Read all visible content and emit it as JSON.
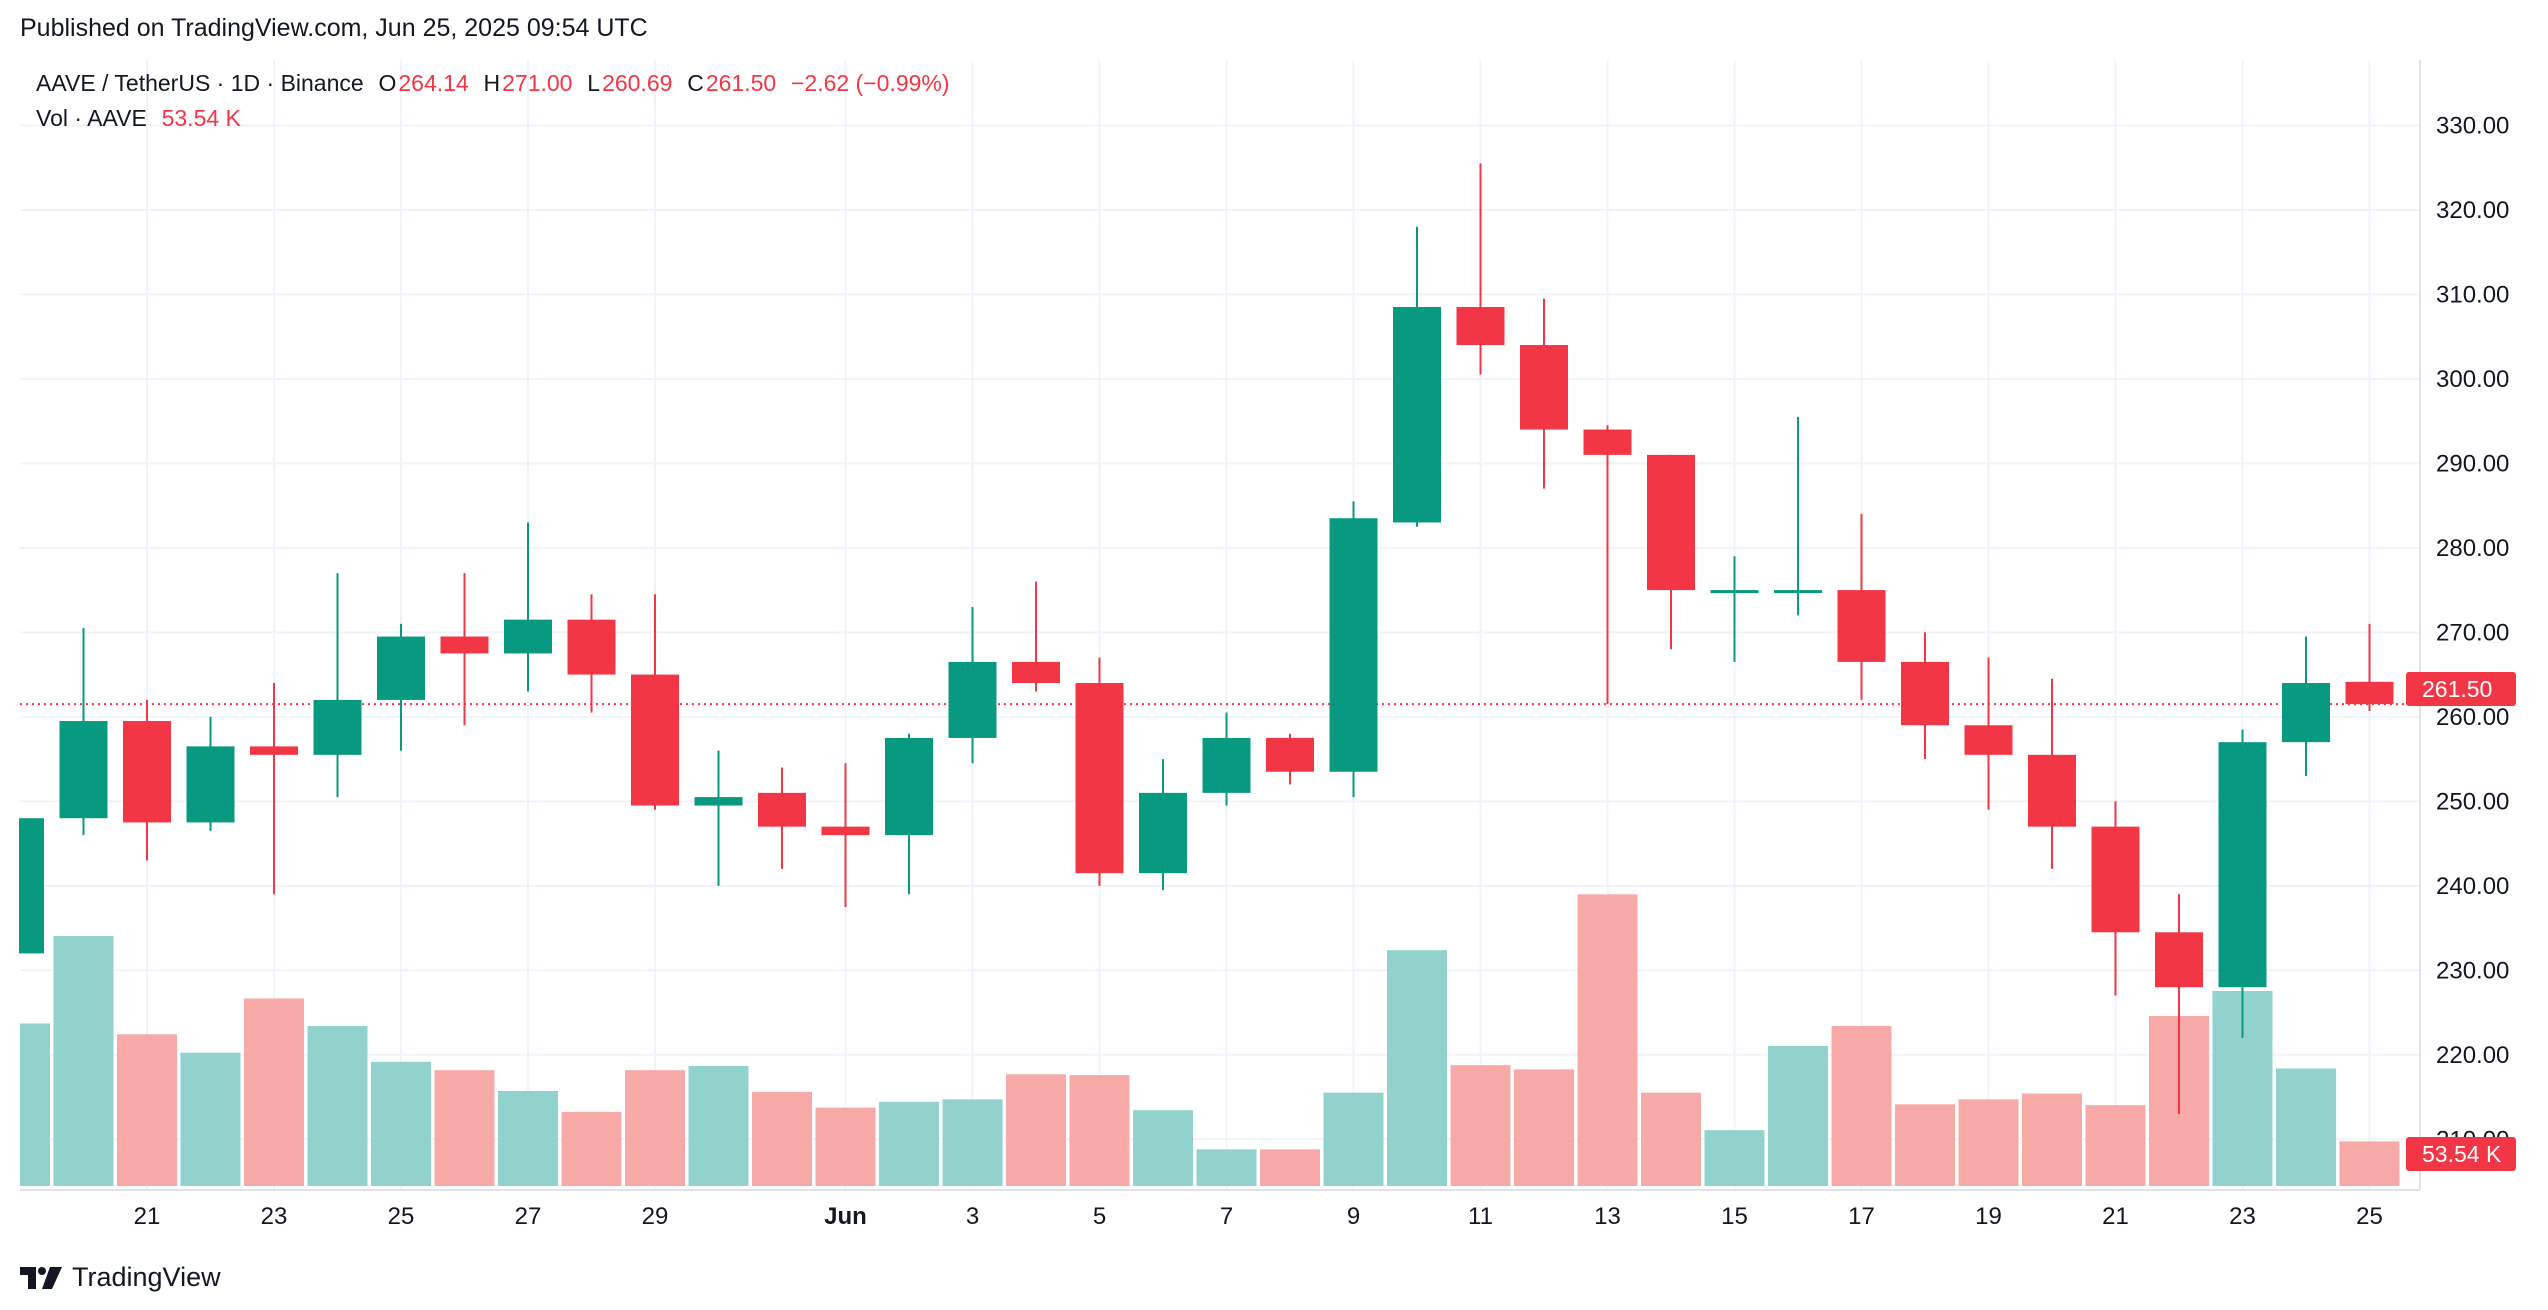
{
  "header": {
    "published": "Published on TradingView.com, Jun 25, 2025 09:54 UTC"
  },
  "legend": {
    "symbol": "AAVE / TetherUS · 1D · Binance",
    "o_label": "O",
    "o_value": "264.14",
    "h_label": "H",
    "h_value": "271.00",
    "l_label": "L",
    "l_value": "260.69",
    "c_label": "C",
    "c_value": "261.50",
    "change": "−2.62 (−0.99%)",
    "vol_label": "Vol · AAVE",
    "vol_value": "53.54 K"
  },
  "price_tag": "261.50",
  "volume_tag": "53.54 K",
  "footer": {
    "brand": "TradingView",
    "logo_icon": "tradingview-logo-icon"
  },
  "colors": {
    "up": "#089981",
    "down": "#f23645",
    "up_volume": "#92d2cc",
    "down_volume": "#f7a9a7",
    "grid": "#f0f3fa",
    "text": "#131722"
  },
  "chart_data": {
    "type": "candlestick",
    "y_axis": {
      "ticks": [
        "210.00",
        "220.00",
        "230.00",
        "240.00",
        "250.00",
        "260.00",
        "270.00",
        "280.00",
        "290.00",
        "300.00",
        "310.00",
        "320.00",
        "330.00"
      ],
      "ylim": [
        204,
        333
      ],
      "position": "right"
    },
    "x_axis": {
      "ticks": [
        "21",
        "23",
        "25",
        "27",
        "29",
        "Jun",
        "3",
        "5",
        "7",
        "9",
        "11",
        "13",
        "15",
        "17",
        "19",
        "21",
        "23",
        "25"
      ]
    },
    "grid": true,
    "last_price_line": 261.5,
    "candles": [
      {
        "date": "May 19",
        "open": 232,
        "high": 248,
        "low": 232,
        "close": 248,
        "volume": 19.5
      },
      {
        "date": "May 20",
        "open": 248,
        "high": 270.5,
        "low": 246,
        "close": 259.5,
        "volume": 30.0
      },
      {
        "date": "May 21",
        "open": 259.5,
        "high": 262,
        "low": 243,
        "close": 247.5,
        "volume": 18.2
      },
      {
        "date": "May 22",
        "open": 247.5,
        "high": 260,
        "low": 246.5,
        "close": 256.5,
        "volume": 16.0
      },
      {
        "date": "May 23",
        "open": 256.5,
        "high": 264,
        "low": 239,
        "close": 255.5,
        "volume": 22.5
      },
      {
        "date": "May 24",
        "open": 255.5,
        "high": 277,
        "low": 250.5,
        "close": 262,
        "volume": 19.2
      },
      {
        "date": "May 25",
        "open": 262,
        "high": 271,
        "low": 256,
        "close": 269.5,
        "volume": 14.9
      },
      {
        "date": "May 26",
        "open": 269.5,
        "high": 277,
        "low": 259,
        "close": 267.5,
        "volume": 13.9
      },
      {
        "date": "May 27",
        "open": 267.5,
        "high": 283,
        "low": 263,
        "close": 271.5,
        "volume": 11.4
      },
      {
        "date": "May 28",
        "open": 271.5,
        "high": 274.5,
        "low": 260.5,
        "close": 265,
        "volume": 8.9
      },
      {
        "date": "May 29",
        "open": 265,
        "high": 274.5,
        "low": 249,
        "close": 249.5,
        "volume": 13.9
      },
      {
        "date": "May 30",
        "open": 249.5,
        "high": 256,
        "low": 240,
        "close": 250.5,
        "volume": 14.4
      },
      {
        "date": "May 31",
        "open": 251,
        "high": 254,
        "low": 242,
        "close": 247,
        "volume": 11.3
      },
      {
        "date": "Jun 1",
        "open": 247,
        "high": 254.5,
        "low": 237.5,
        "close": 246,
        "volume": 9.4
      },
      {
        "date": "Jun 2",
        "open": 246,
        "high": 258,
        "low": 239,
        "close": 257.5,
        "volume": 10.1
      },
      {
        "date": "Jun 3",
        "open": 257.5,
        "high": 273,
        "low": 254.5,
        "close": 266.5,
        "volume": 10.4
      },
      {
        "date": "Jun 4",
        "open": 266.5,
        "high": 276,
        "low": 263,
        "close": 264,
        "volume": 13.4
      },
      {
        "date": "Jun 5",
        "open": 264,
        "high": 267,
        "low": 240,
        "close": 241.5,
        "volume": 13.3
      },
      {
        "date": "Jun 6",
        "open": 241.5,
        "high": 255,
        "low": 239.5,
        "close": 251,
        "volume": 9.1
      },
      {
        "date": "Jun 7",
        "open": 251,
        "high": 260.5,
        "low": 249.5,
        "close": 257.5,
        "volume": 4.4
      },
      {
        "date": "Jun 8",
        "open": 257.5,
        "high": 258,
        "low": 252,
        "close": 253.5,
        "volume": 4.4
      },
      {
        "date": "Jun 9",
        "open": 253.5,
        "high": 285.5,
        "low": 250.5,
        "close": 283.5,
        "volume": 11.2
      },
      {
        "date": "Jun 10",
        "open": 283,
        "high": 318,
        "low": 282.5,
        "close": 308.5,
        "volume": 28.3
      },
      {
        "date": "Jun 11",
        "open": 308.5,
        "high": 325.5,
        "low": 300.5,
        "close": 304,
        "volume": 14.5
      },
      {
        "date": "Jun 12",
        "open": 304,
        "high": 309.5,
        "low": 287,
        "close": 294,
        "volume": 14.0
      },
      {
        "date": "Jun 13",
        "open": 294,
        "high": 294.5,
        "low": 261.5,
        "close": 291,
        "volume": 35.0
      },
      {
        "date": "Jun 14",
        "open": 291,
        "high": 291,
        "low": 268,
        "close": 275,
        "volume": 11.2
      },
      {
        "date": "Jun 15",
        "open": 275,
        "high": 279,
        "low": 266.5,
        "close": 275,
        "volume": 6.7
      },
      {
        "date": "Jun 16",
        "open": 275,
        "high": 295.5,
        "low": 272,
        "close": 275,
        "volume": 16.8
      },
      {
        "date": "Jun 17",
        "open": 275,
        "high": 284,
        "low": 262,
        "close": 266.5,
        "volume": 19.2
      },
      {
        "date": "Jun 18",
        "open": 266.5,
        "high": 270,
        "low": 255,
        "close": 259,
        "volume": 9.8
      },
      {
        "date": "Jun 19",
        "open": 259,
        "high": 267,
        "low": 249,
        "close": 255.5,
        "volume": 10.4
      },
      {
        "date": "Jun 20",
        "open": 255.5,
        "high": 264.5,
        "low": 242,
        "close": 247,
        "volume": 11.1
      },
      {
        "date": "Jun 21",
        "open": 247,
        "high": 250,
        "low": 227,
        "close": 234.5,
        "volume": 9.7
      },
      {
        "date": "Jun 22",
        "open": 234.5,
        "high": 239,
        "low": 213,
        "close": 228,
        "volume": 20.4
      },
      {
        "date": "Jun 23",
        "open": 228,
        "high": 258.5,
        "low": 222,
        "close": 257,
        "volume": 23.4
      },
      {
        "date": "Jun 24",
        "open": 257,
        "high": 269.5,
        "low": 253,
        "close": 264,
        "volume": 14.1
      },
      {
        "date": "Jun 25",
        "open": 264.14,
        "high": 271.0,
        "low": 260.69,
        "close": 261.5,
        "volume": 5.354
      }
    ]
  }
}
